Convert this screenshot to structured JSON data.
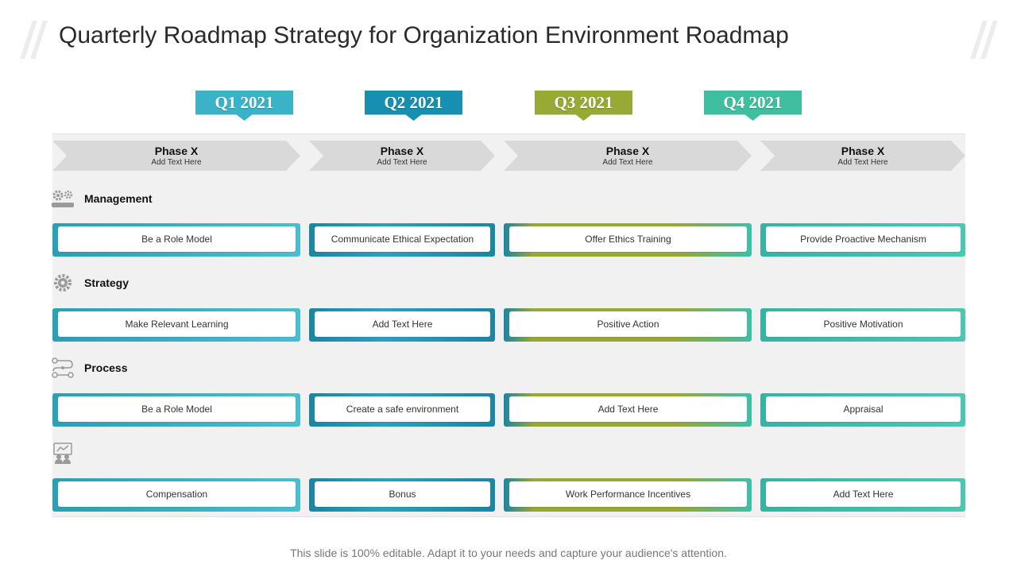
{
  "title": "Quarterly Roadmap Strategy for Organization Environment Roadmap",
  "quarters": [
    {
      "label": "Q1 2021",
      "color": "#3ab3c9"
    },
    {
      "label": "Q2 2021",
      "color": "#168fb0"
    },
    {
      "label": "Q3 2021",
      "color": "#98a935"
    },
    {
      "label": "Q4 2021",
      "color": "#3fbf9f"
    }
  ],
  "phases": [
    {
      "title": "Phase X",
      "subtitle": "Add Text Here"
    },
    {
      "title": "Phase X",
      "subtitle": "Add Text Here"
    },
    {
      "title": "Phase X",
      "subtitle": "Add Text Here"
    },
    {
      "title": "Phase X",
      "subtitle": "Add Text Here"
    }
  ],
  "categories": [
    {
      "label": "Management",
      "icon": "gears-icon"
    },
    {
      "label": "Strategy",
      "icon": "cog-settings-icon"
    },
    {
      "label": "Process",
      "icon": "process-flow-icon"
    },
    {
      "label": "",
      "icon": "team-presentation-icon"
    }
  ],
  "rows": [
    [
      "Be a Role Model",
      "Communicate Ethical Expectation",
      "Offer  Ethics Training",
      "Provide Proactive Mechanism"
    ],
    [
      "Make Relevant  Learning",
      "Add Text Here",
      "Positive Action",
      "Positive Motivation"
    ],
    [
      "Be a Role Model",
      "Create  a safe  environment",
      "Add Text Here",
      "Appraisal"
    ],
    [
      "Compensation",
      "Bonus",
      "Work Performance  Incentives",
      "Add Text Here"
    ]
  ],
  "footer": "This slide is 100% editable. Adapt it to your needs and capture your audience's attention."
}
